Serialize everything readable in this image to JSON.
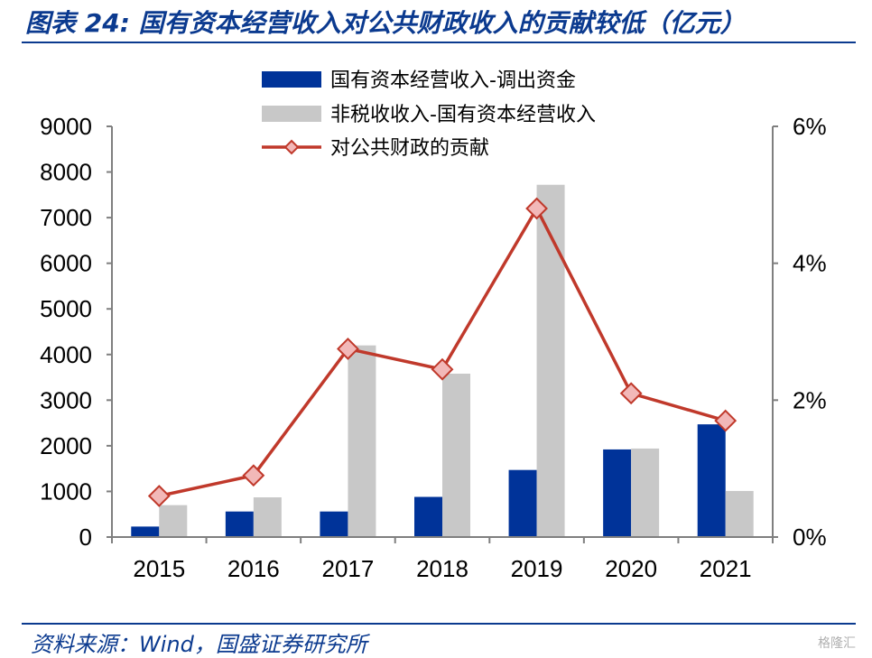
{
  "title": "图表 24:  国有资本经营收入对公共财政收入的贡献较低（亿元）",
  "source": "资料来源：Wind，国盛证券研究所",
  "watermark": "格隆汇",
  "chart_data": {
    "type": "bar",
    "categories": [
      "2015",
      "2016",
      "2017",
      "2018",
      "2019",
      "2020",
      "2021"
    ],
    "series": [
      {
        "name": "国有资本经营收入-调出资金",
        "type": "bar",
        "axis": "left",
        "color": "#003399",
        "values": [
          230,
          560,
          560,
          880,
          1470,
          1920,
          2470
        ]
      },
      {
        "name": "非税收收入-国有资本经营收入",
        "type": "bar",
        "axis": "left",
        "color": "#c8c8c8",
        "values": [
          700,
          870,
          4200,
          3580,
          7720,
          1940,
          1010
        ]
      },
      {
        "name": "对公共财政的贡献",
        "type": "line",
        "axis": "right",
        "color": "#c0392b",
        "marker": "diamond",
        "marker_fill": "#f2b8b8",
        "values": [
          0.6,
          0.9,
          2.75,
          2.45,
          4.8,
          2.1,
          1.7
        ]
      }
    ],
    "y_left": {
      "min": 0,
      "max": 9000,
      "ticks": [
        "0",
        "1000",
        "2000",
        "3000",
        "4000",
        "5000",
        "6000",
        "7000",
        "8000",
        "9000"
      ]
    },
    "y_right": {
      "min": 0,
      "max": 6,
      "ticks": [
        "0%",
        "2%",
        "4%",
        "6%"
      ]
    },
    "grid": false,
    "legend_position": "top-center"
  }
}
